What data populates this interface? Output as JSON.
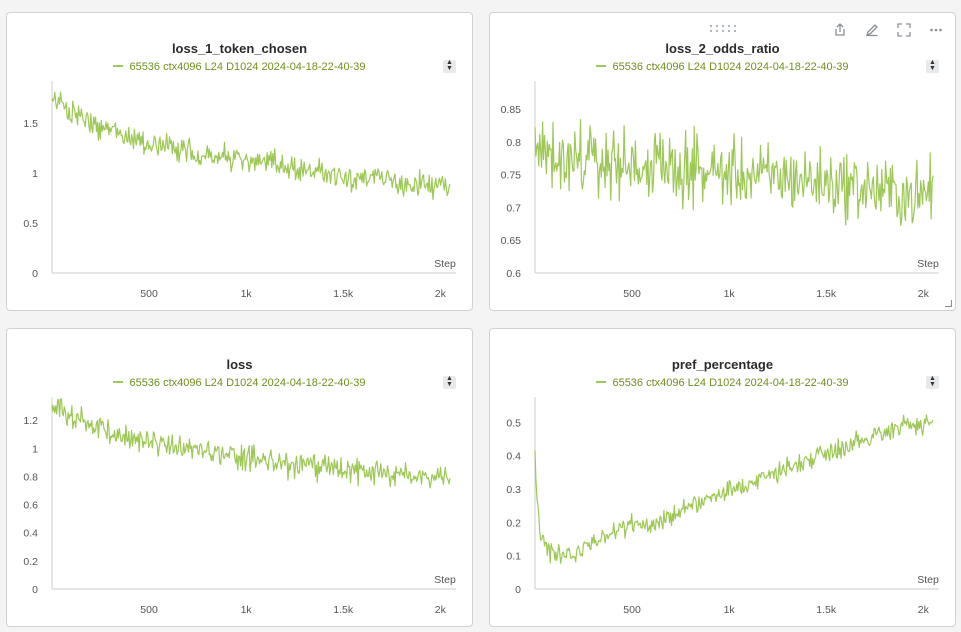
{
  "colors": {
    "series": "#9dc856",
    "legend_text": "#6f8f1c",
    "axis": "#c9ccd0",
    "tick_text": "#555555"
  },
  "run_name": "65536 ctx4096 L24 D1024 2024-04-18-22-40-39",
  "panel_toolbar": {
    "icons": [
      "drag-handle-icon",
      "share-icon",
      "edit-icon",
      "fullscreen-icon",
      "more-icon"
    ]
  },
  "chart_data": [
    {
      "type": "line",
      "title": "loss_1_token_chosen",
      "xlabel": "Step",
      "ylabel": "",
      "xlim": [
        0,
        2050
      ],
      "ylim": [
        0,
        1.9
      ],
      "xticks": [
        500,
        1000,
        1500,
        2000
      ],
      "xtick_labels": [
        "500",
        "1k",
        "1.5k",
        "2k"
      ],
      "yticks": [
        0,
        0.5,
        1,
        1.5
      ],
      "ytick_labels": [
        "0",
        "0.5",
        "1",
        "1.5"
      ],
      "series": [
        {
          "name": "65536 ctx4096 L24 D1024 2024-04-18-22-40-39",
          "x": [
            0,
            100,
            200,
            300,
            400,
            500,
            600,
            700,
            800,
            900,
            1000,
            1100,
            1200,
            1300,
            1400,
            1500,
            1600,
            1700,
            1800,
            1900,
            2000,
            2050
          ],
          "y": [
            1.75,
            1.6,
            1.5,
            1.42,
            1.36,
            1.3,
            1.25,
            1.22,
            1.18,
            1.15,
            1.12,
            1.1,
            1.07,
            1.04,
            1.01,
            0.98,
            0.95,
            0.93,
            0.9,
            0.88,
            0.86,
            0.84
          ]
        }
      ]
    },
    {
      "type": "line",
      "title": "loss_2_odds_ratio",
      "xlabel": "Step",
      "ylabel": "",
      "xlim": [
        0,
        2050
      ],
      "ylim": [
        0.6,
        0.89
      ],
      "xticks": [
        500,
        1000,
        1500,
        2000
      ],
      "xtick_labels": [
        "500",
        "1k",
        "1.5k",
        "2k"
      ],
      "yticks": [
        0.6,
        0.65,
        0.7,
        0.75,
        0.8,
        0.85
      ],
      "ytick_labels": [
        "0.6",
        "0.65",
        "0.7",
        "0.75",
        "0.8",
        "0.85"
      ],
      "series": [
        {
          "name": "65536 ctx4096 L24 D1024 2024-04-18-22-40-39",
          "x": [
            0,
            100,
            200,
            300,
            400,
            500,
            600,
            700,
            800,
            900,
            1000,
            1100,
            1200,
            1300,
            1400,
            1500,
            1600,
            1700,
            1800,
            1900,
            2000,
            2050
          ],
          "y": [
            0.79,
            0.785,
            0.775,
            0.77,
            0.768,
            0.765,
            0.762,
            0.76,
            0.757,
            0.755,
            0.752,
            0.75,
            0.747,
            0.745,
            0.742,
            0.738,
            0.735,
            0.73,
            0.725,
            0.72,
            0.715,
            0.735
          ]
        }
      ]
    },
    {
      "type": "line",
      "title": "loss",
      "xlabel": "Step",
      "ylabel": "",
      "xlim": [
        0,
        2050
      ],
      "ylim": [
        0,
        1.35
      ],
      "xticks": [
        500,
        1000,
        1500,
        2000
      ],
      "xtick_labels": [
        "500",
        "1k",
        "1.5k",
        "2k"
      ],
      "yticks": [
        0,
        0.2,
        0.4,
        0.6,
        0.8,
        1,
        1.2
      ],
      "ytick_labels": [
        "0",
        "0.2",
        "0.4",
        "0.6",
        "0.8",
        "1",
        "1.2"
      ],
      "series": [
        {
          "name": "65536 ctx4096 L24 D1024 2024-04-18-22-40-39",
          "x": [
            0,
            100,
            200,
            300,
            400,
            500,
            600,
            700,
            800,
            900,
            1000,
            1100,
            1200,
            1300,
            1400,
            1500,
            1600,
            1700,
            1800,
            1900,
            2000,
            2050
          ],
          "y": [
            1.28,
            1.23,
            1.17,
            1.12,
            1.08,
            1.05,
            1.02,
            1.0,
            0.97,
            0.95,
            0.93,
            0.91,
            0.89,
            0.87,
            0.86,
            0.84,
            0.83,
            0.82,
            0.81,
            0.8,
            0.8,
            0.8
          ]
        }
      ]
    },
    {
      "type": "line",
      "title": "pref_percentage",
      "xlabel": "Step",
      "ylabel": "",
      "xlim": [
        0,
        2050
      ],
      "ylim": [
        0,
        0.57
      ],
      "xticks": [
        500,
        1000,
        1500,
        2000
      ],
      "xtick_labels": [
        "500",
        "1k",
        "1.5k",
        "2k"
      ],
      "yticks": [
        0,
        0.1,
        0.2,
        0.3,
        0.4,
        0.5
      ],
      "ytick_labels": [
        "0",
        "0.1",
        "0.2",
        "0.3",
        "0.4",
        "0.5"
      ],
      "series": [
        {
          "name": "65536 ctx4096 L24 D1024 2024-04-18-22-40-39",
          "x": [
            0,
            10,
            30,
            60,
            100,
            150,
            200,
            300,
            400,
            500,
            600,
            700,
            800,
            900,
            1000,
            1100,
            1200,
            1300,
            1400,
            1500,
            1600,
            1700,
            1800,
            1900,
            2000,
            2050
          ],
          "y": [
            0.4,
            0.28,
            0.16,
            0.12,
            0.1,
            0.09,
            0.1,
            0.14,
            0.17,
            0.19,
            0.2,
            0.22,
            0.25,
            0.27,
            0.29,
            0.32,
            0.34,
            0.36,
            0.39,
            0.41,
            0.43,
            0.45,
            0.47,
            0.5,
            0.48,
            0.5
          ]
        }
      ]
    }
  ]
}
